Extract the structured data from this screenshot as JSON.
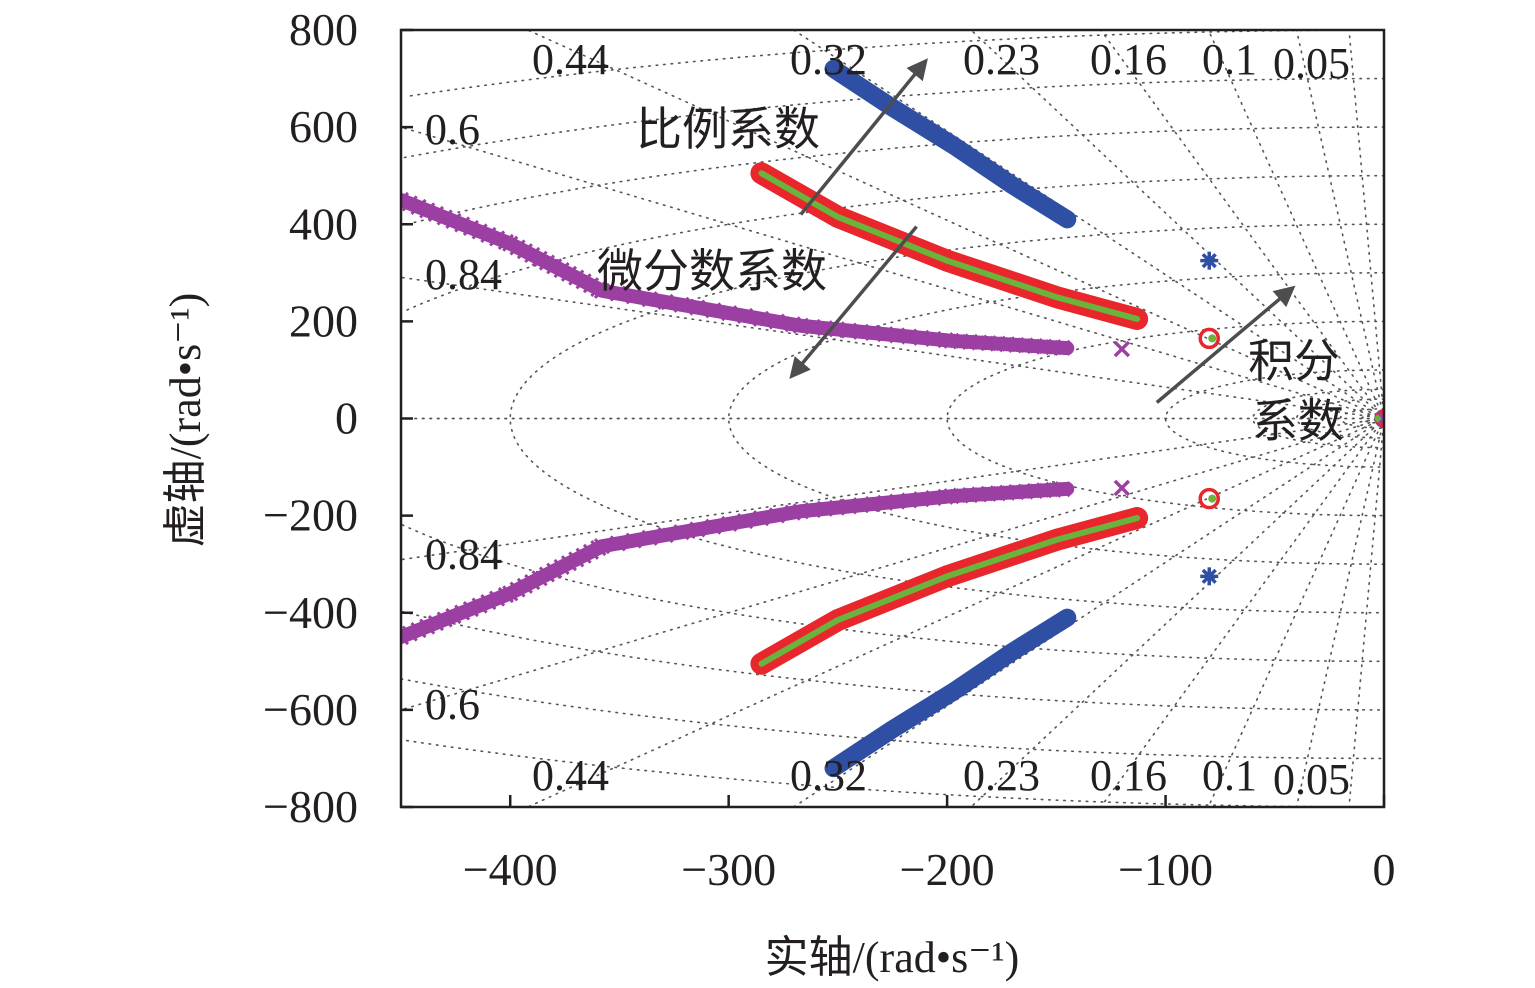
{
  "chart_data": {
    "type": "scatter",
    "title": "",
    "xlabel": "实轴/(rad•s⁻¹)",
    "ylabel": "虚轴/(rad•s⁻¹)",
    "xlim": [
      -450,
      0
    ],
    "ylim": [
      -800,
      800
    ],
    "xticks": [
      "−400",
      "−300",
      "−200",
      "−100",
      "0"
    ],
    "xtick_values": [
      -400,
      -300,
      -200,
      -100,
      0
    ],
    "yticks": [
      "800",
      "600",
      "400",
      "200",
      "0",
      "−200",
      "−400",
      "−600",
      "−800"
    ],
    "ytick_values": [
      800,
      600,
      400,
      200,
      0,
      -200,
      -400,
      -600,
      -800
    ],
    "grid": "s-plane damping/natural-frequency grid (dotted)",
    "damping_labels": [
      "0.44",
      "0.32",
      "0.23",
      "0.16",
      "0.1",
      "0.05",
      "0.6",
      "0.84"
    ],
    "damping_values": [
      0.44,
      0.32,
      0.23,
      0.16,
      0.1,
      0.05,
      0.6,
      0.84
    ],
    "natural_frequencies": [
      100,
      200,
      300,
      400,
      500,
      600,
      700,
      800
    ],
    "series": [
      {
        "marker": "asterisk",
        "color": "#2e4fa3",
        "x": [
          -252,
          -225,
          -197,
          -170,
          -145
        ],
        "y": [
          720,
          640,
          562,
          480,
          410
        ],
        "open_loop_points": [
          [
            -80,
            325
          ],
          [
            -80,
            -325
          ]
        ]
      },
      {
        "marker": "circle",
        "color": "#e8262b",
        "x": [
          -285,
          -250,
          -200,
          -150,
          -113
        ],
        "y": [
          505,
          415,
          325,
          250,
          205
        ],
        "open_loop_points": [
          [
            -80,
            165
          ],
          [
            -80,
            -165
          ]
        ]
      },
      {
        "marker": "dot",
        "color": "#6ab43e",
        "x": [
          -285,
          -250,
          -200,
          -150,
          -113
        ],
        "y": [
          505,
          415,
          325,
          250,
          205
        ],
        "open_loop_points": [
          [
            -80,
            165
          ],
          [
            -80,
            -165
          ]
        ]
      },
      {
        "marker": "x",
        "color": "#9b3fa3",
        "x": [
          -450,
          -400,
          -358,
          -267,
          -198,
          -145
        ],
        "y": [
          450,
          360,
          263,
          191,
          160,
          145
        ],
        "open_loop_points": [
          [
            -120,
            143
          ],
          [
            -120,
            -143
          ]
        ]
      }
    ],
    "symmetric_about_real_axis": true,
    "origin_markers": true,
    "annotations": [
      {
        "text": "比例系数",
        "arrow_from": [
          -267,
          420
        ],
        "arrow_to": [
          -210,
          735
        ]
      },
      {
        "text": "微分数系数",
        "arrow_from": [
          -214,
          395
        ],
        "arrow_to": [
          -271,
          88
        ]
      },
      {
        "text": "积分",
        "text2": "系数",
        "arrow_from": [
          -104,
          33
        ],
        "arrow_to": [
          -42,
          268
        ]
      }
    ]
  }
}
